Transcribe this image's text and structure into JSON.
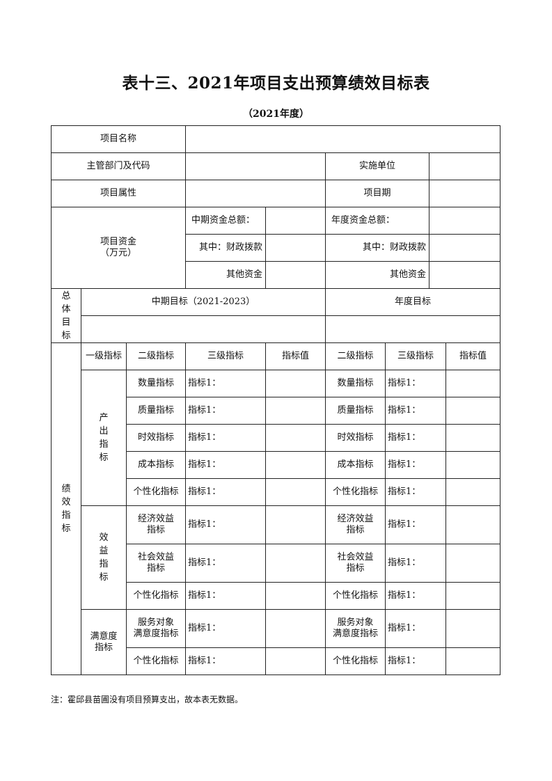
{
  "title": "表十三、2021年项目支出预算绩效目标表",
  "subtitle": "（2021年度）",
  "info": {
    "project_name_label": "项目名称",
    "project_name_value": "",
    "department_label": "主管部门及代码",
    "department_value": "",
    "implementer_label": "实施单位",
    "implementer_value": "",
    "attribute_label": "项目属性",
    "attribute_value": "",
    "period_label": "项目期",
    "period_value": "",
    "funds_label": "项目资金",
    "funds_unit": "（万元）",
    "mid_total_label": "中期资金总额：",
    "mid_total_value": "",
    "mid_fiscal_label": "其中：财政拨款",
    "mid_fiscal_value": "",
    "mid_other_label": "其他资金",
    "mid_other_value": "",
    "annual_total_label": "年度资金总额：",
    "annual_total_value": "",
    "annual_fiscal_label": "其中：财政拨款",
    "annual_fiscal_value": "",
    "annual_other_label": "其他资金",
    "annual_other_value": ""
  },
  "overall": {
    "label": "总体目标",
    "mid_header": "中期目标（2021-2023）",
    "annual_header": "年度目标",
    "mid_value": "",
    "annual_value": ""
  },
  "performance": {
    "label": "绩效指标",
    "headers": {
      "level1": "一级指标",
      "mid_level2": "二级指标",
      "mid_level3": "三级指标",
      "mid_value": "指标值",
      "annual_level2": "二级指标",
      "annual_level3": "三级指标",
      "annual_value": "指标值"
    },
    "groups": [
      {
        "label": "产出指标",
        "rows": [
          {
            "level2": [
              "数量指标"
            ],
            "level3": "指标1："
          },
          {
            "level2": [
              "质量指标"
            ],
            "level3": "指标1："
          },
          {
            "level2": [
              "时效指标"
            ],
            "level3": "指标1："
          },
          {
            "level2": [
              "成本指标"
            ],
            "level3": "指标1："
          },
          {
            "level2": [
              "个性化指标"
            ],
            "level3": "指标1："
          }
        ]
      },
      {
        "label": "效益指标",
        "rows": [
          {
            "level2": [
              "经济效益",
              "指标"
            ],
            "level3": "指标1："
          },
          {
            "level2": [
              "社会效益",
              "指标"
            ],
            "level3": "指标1："
          },
          {
            "level2": [
              "个性化指标"
            ],
            "level3": "指标1："
          }
        ]
      },
      {
        "label_lines": [
          "满意度",
          "指标"
        ],
        "rows": [
          {
            "level2": [
              "服务对象",
              "满意度指标"
            ],
            "level3": "指标1："
          },
          {
            "level2": [
              "个性化指标"
            ],
            "level3": "指标1："
          }
        ]
      }
    ]
  },
  "note": "注：霍邱县苗圃没有项目预算支出，故本表无数据。"
}
